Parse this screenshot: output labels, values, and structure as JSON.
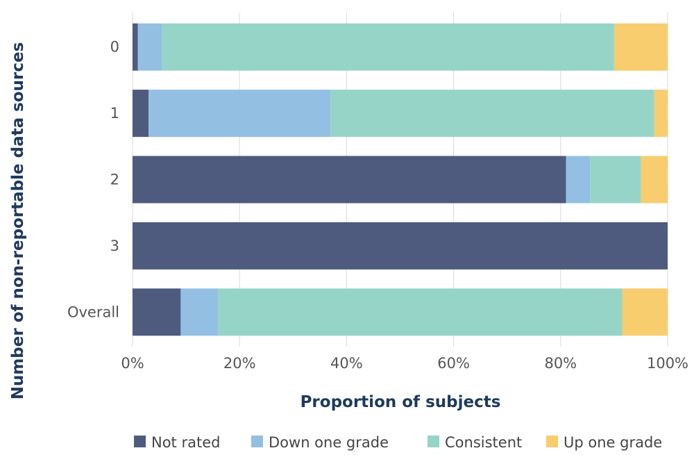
{
  "chart_data": {
    "type": "bar",
    "orientation": "horizontal",
    "stacked": true,
    "title": "",
    "xlabel": "Proportion of subjects",
    "ylabel": "Number of non-reportable data sources",
    "categories": [
      "0",
      "1",
      "2",
      "3",
      "Overall"
    ],
    "xlim": [
      0,
      100
    ],
    "x_ticks": [
      "0%",
      "20%",
      "40%",
      "60%",
      "80%",
      "100%"
    ],
    "series": [
      {
        "name": "Not rated",
        "color": "#4e5b7e",
        "values": [
          1,
          3,
          81,
          100,
          9
        ]
      },
      {
        "name": "Down one grade",
        "color": "#93bfe3",
        "values": [
          4.5,
          34,
          4.5,
          0,
          7
        ]
      },
      {
        "name": "Consistent",
        "color": "#96d4c8",
        "values": [
          84.5,
          60.5,
          9.5,
          0,
          75.5
        ]
      },
      {
        "name": "Up one grade",
        "color": "#f7cd6e",
        "values": [
          10,
          2.5,
          5,
          0,
          8.5
        ]
      }
    ],
    "grid": true,
    "legend_position": "bottom"
  }
}
